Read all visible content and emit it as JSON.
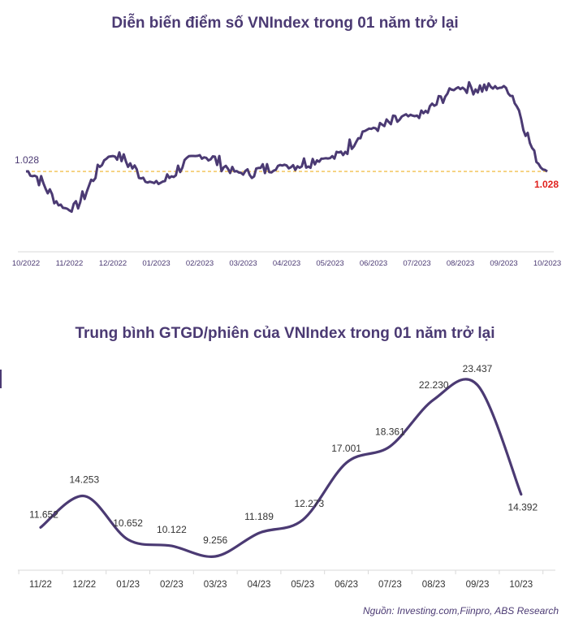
{
  "chart_data": [
    {
      "type": "line",
      "title": "Diễn biến điểm số VNIndex trong 01 năm trở lại",
      "x_tick_labels": [
        "10/2022",
        "11/2022",
        "12/2022",
        "01/2023",
        "02/2023",
        "03/2023",
        "04/2023",
        "05/2023",
        "06/2023",
        "07/2023",
        "08/2023",
        "09/2023",
        "10/2023"
      ],
      "x": [
        "10/2022",
        "11/2022",
        "12/2022",
        "01/2023",
        "02/2023",
        "03/2023",
        "04/2023",
        "05/2023",
        "06/2023",
        "07/2023",
        "08/2023",
        "09/2023",
        "10/2023"
      ],
      "series": [
        {
          "values": [
            1028,
            953,
            1060,
            1005,
            1060,
            1025,
            1040,
            1055,
            1115,
            1140,
            1195,
            1195,
            1028
          ]
        }
      ],
      "reference_line": {
        "value": 1028,
        "start_label": "1.028",
        "end_label": "1.028",
        "style": "dashed"
      },
      "end_label_color": "#e0201c",
      "line_color": "#4b3a73",
      "ref_color": "#f2c14e",
      "grid": false
    },
    {
      "type": "line",
      "title": "Trung bình GTGD/phiên của VNIndex trong 01 năm trở lại",
      "categories": [
        "11/22",
        "12/22",
        "01/23",
        "02/23",
        "03/23",
        "04/23",
        "05/23",
        "06/23",
        "07/23",
        "08/23",
        "09/23",
        "10/23"
      ],
      "series": [
        {
          "values": [
            11652,
            14253,
            10652,
            10122,
            9256,
            11189,
            12273,
            17001,
            18361,
            22230,
            23437,
            14392
          ],
          "data_labels": [
            "11.652",
            "14.253",
            "10.652",
            "10.122",
            "9.256",
            "11.189",
            "12.273",
            "17.001",
            "18.361",
            "22.230",
            "23.437",
            "14.392"
          ]
        }
      ],
      "line_color": "#4b3a73",
      "grid": false
    }
  ],
  "source_text": "Nguồn: Investing.com,Fiinpro, ABS Research"
}
